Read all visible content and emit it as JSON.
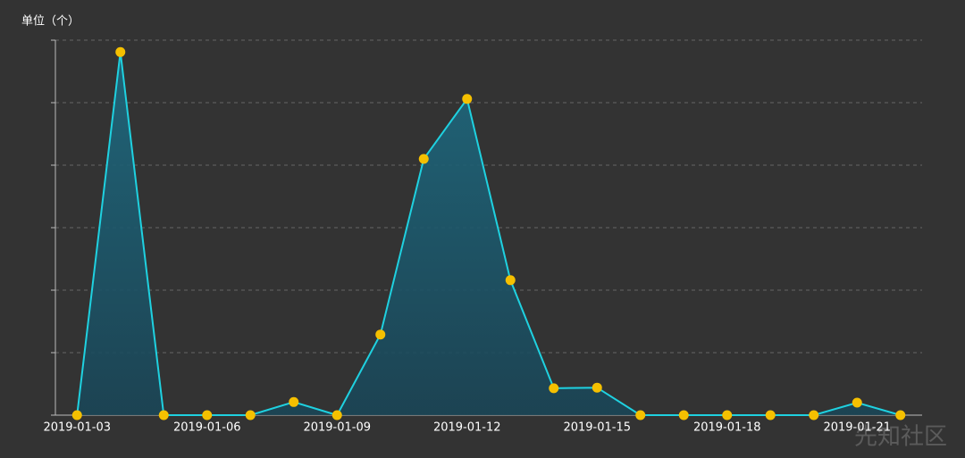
{
  "chart_data": {
    "type": "area",
    "y_label": "单位（个）",
    "categories": [
      "2019-01-03",
      null,
      null,
      "2019-01-06",
      null,
      null,
      "2019-01-09",
      null,
      null,
      "2019-01-12",
      null,
      null,
      "2019-01-15",
      null,
      null,
      "2019-01-18",
      null,
      null,
      "2019-01-21",
      null
    ],
    "series": [
      {
        "color": "#1fd1e0",
        "marker_color": "#f5c000",
        "values": [
          0,
          5.81,
          0,
          0,
          0,
          0.21,
          0,
          1.29,
          4.1,
          5.06,
          2.16,
          0.43,
          0.44,
          0,
          0,
          0,
          0,
          0,
          0.2,
          0
        ]
      }
    ],
    "ylim": [
      0,
      6
    ],
    "yticks": [
      0,
      1,
      2,
      3,
      4,
      5,
      6
    ],
    "grid": true,
    "watermark": "先知社区"
  }
}
